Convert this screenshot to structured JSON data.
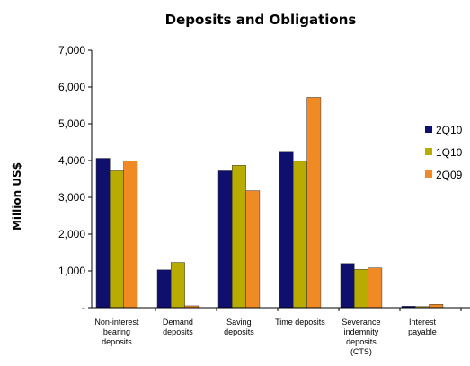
{
  "chart_data": {
    "type": "bar",
    "title": "Deposits and Obligations",
    "xlabel": "",
    "ylabel": "Million US$",
    "ylim": [
      0,
      7000
    ],
    "yticks": [
      0,
      1000,
      2000,
      3000,
      4000,
      5000,
      6000,
      7000
    ],
    "ytick_labels": [
      "-",
      "1,000",
      "2,000",
      "3,000",
      "4,000",
      "5,000",
      "6,000",
      "7,000"
    ],
    "categories": [
      [
        "Non-interest",
        "bearing",
        "deposits"
      ],
      [
        "Demand",
        "deposits"
      ],
      [
        "Saving",
        "deposits"
      ],
      [
        "Time deposits"
      ],
      [
        "Severance",
        "indemnity",
        "deposits",
        "(CTS)"
      ],
      [
        "Interest",
        "payable"
      ]
    ],
    "series": [
      {
        "name": "2Q10",
        "color": "#0f0f6e",
        "values": [
          4060,
          1030,
          3720,
          4250,
          1200,
          40
        ]
      },
      {
        "name": "1Q10",
        "color": "#b8ac00",
        "values": [
          3720,
          1230,
          3870,
          3980,
          1040,
          30
        ]
      },
      {
        "name": "2Q09",
        "color": "#f08a24",
        "values": [
          3990,
          50,
          3180,
          5720,
          1080,
          90
        ]
      }
    ],
    "grid": false,
    "legend": "right"
  }
}
